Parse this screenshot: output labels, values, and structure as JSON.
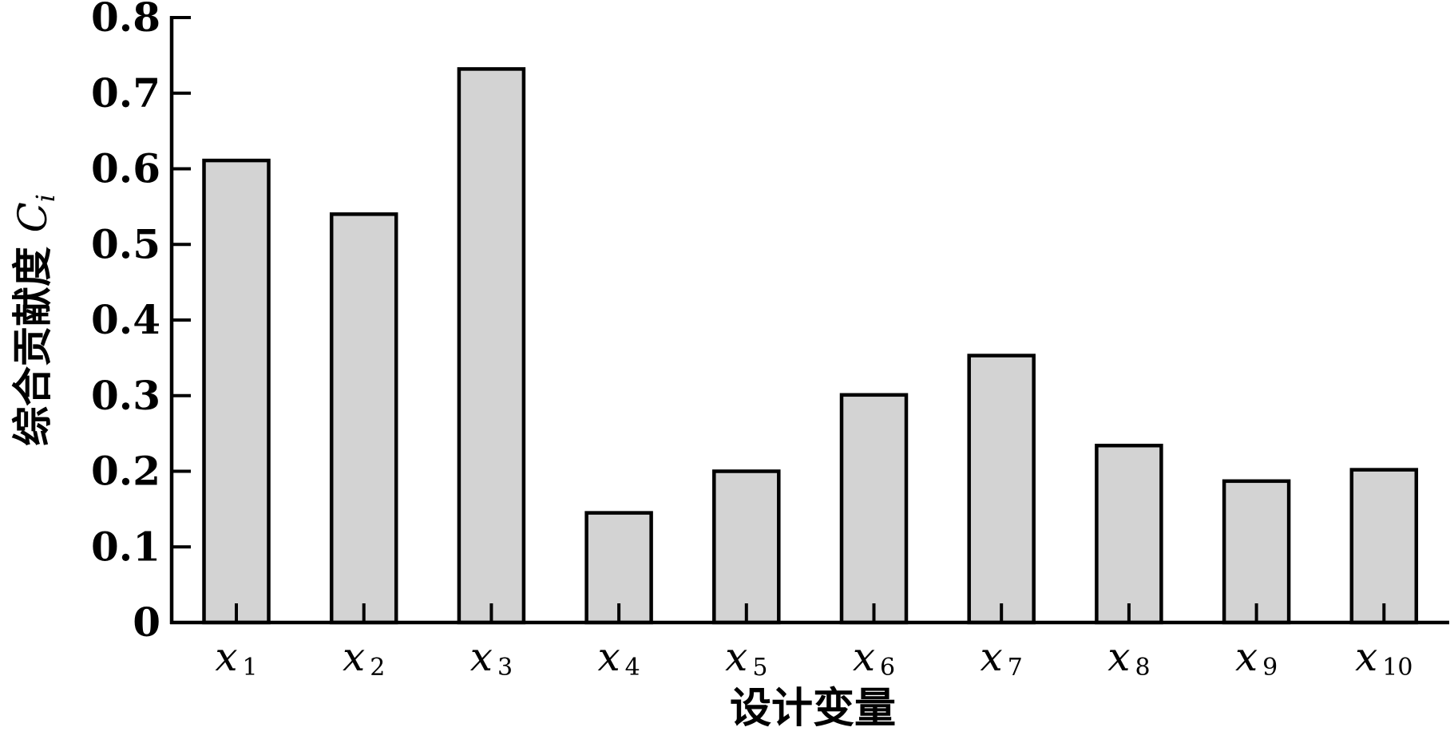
{
  "chart_data": {
    "type": "bar",
    "x_label": "设计变量",
    "y_label": "综合贡献度 Ci",
    "categories": [
      "x1",
      "x2",
      "x3",
      "x4",
      "x5",
      "x6",
      "x7",
      "x8",
      "x9",
      "x10"
    ],
    "values": [
      0.611,
      0.54,
      0.732,
      0.145,
      0.2,
      0.301,
      0.353,
      0.234,
      0.187,
      0.202
    ],
    "color": "#d3d3d3",
    "ylim": [
      0,
      0.8
    ],
    "yticks": [
      0,
      0.1,
      0.2,
      0.3,
      0.4,
      0.5,
      0.6,
      0.7,
      0.8
    ]
  }
}
